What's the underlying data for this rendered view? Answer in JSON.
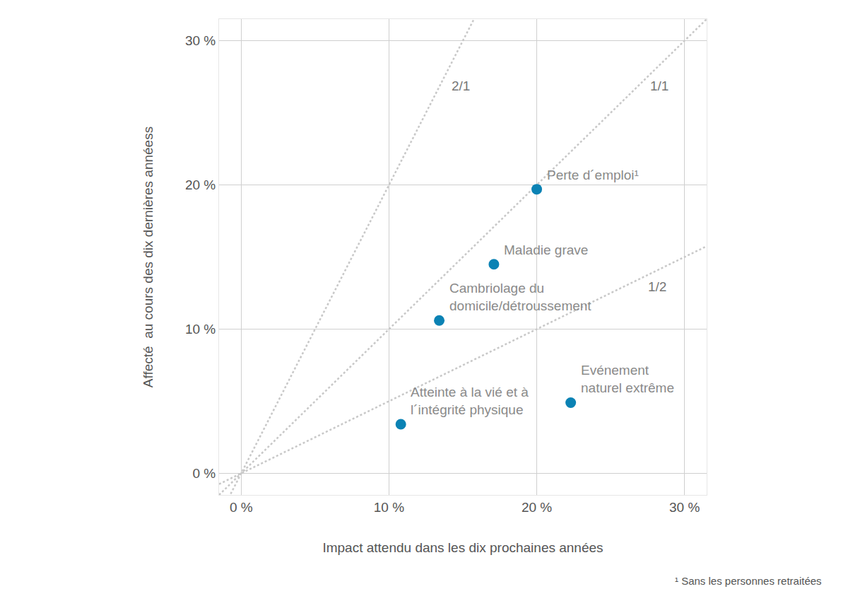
{
  "chart_data": {
    "type": "scatter",
    "x_label": "Impact attendu dans les dix prochaines années",
    "y_label": "Affecté  au cours des dix dernières annéess",
    "footnote": "¹ Sans les personnes retraitées",
    "labels": [
      "Perte d´emploi¹",
      "Maladie grave",
      "Cambriolage du\ndomicile/détroussement",
      "Atteinte à la vié et à\nl´intégrité physique",
      "Evénement\nnaturel extrême"
    ],
    "x": [
      20.0,
      17.1,
      13.4,
      10.8,
      22.3
    ],
    "values": [
      19.7,
      14.5,
      10.6,
      3.4,
      4.9
    ],
    "color": "#0a82b4",
    "marker": "circle",
    "reference_lines": [
      {
        "label": "2/1",
        "slope": 2
      },
      {
        "label": "1/1",
        "slope": 1
      },
      {
        "label": "1/2",
        "slope": 0.5
      }
    ],
    "line_style": "dot",
    "xlim": [
      -1.5,
      31.5
    ],
    "ylim": [
      -1.5,
      31.5
    ],
    "xticks": [
      {
        "value": 0,
        "label": "0 %"
      },
      {
        "value": 10,
        "label": "10 %"
      },
      {
        "value": 20,
        "label": "20 %"
      },
      {
        "value": 30,
        "label": "30 %"
      }
    ],
    "yticks": [
      {
        "value": 0,
        "label": "0 %"
      },
      {
        "value": 10,
        "label": "10 %"
      },
      {
        "value": 20,
        "label": "20 %"
      },
      {
        "value": 30,
        "label": "30 %"
      }
    ],
    "grid": true
  }
}
